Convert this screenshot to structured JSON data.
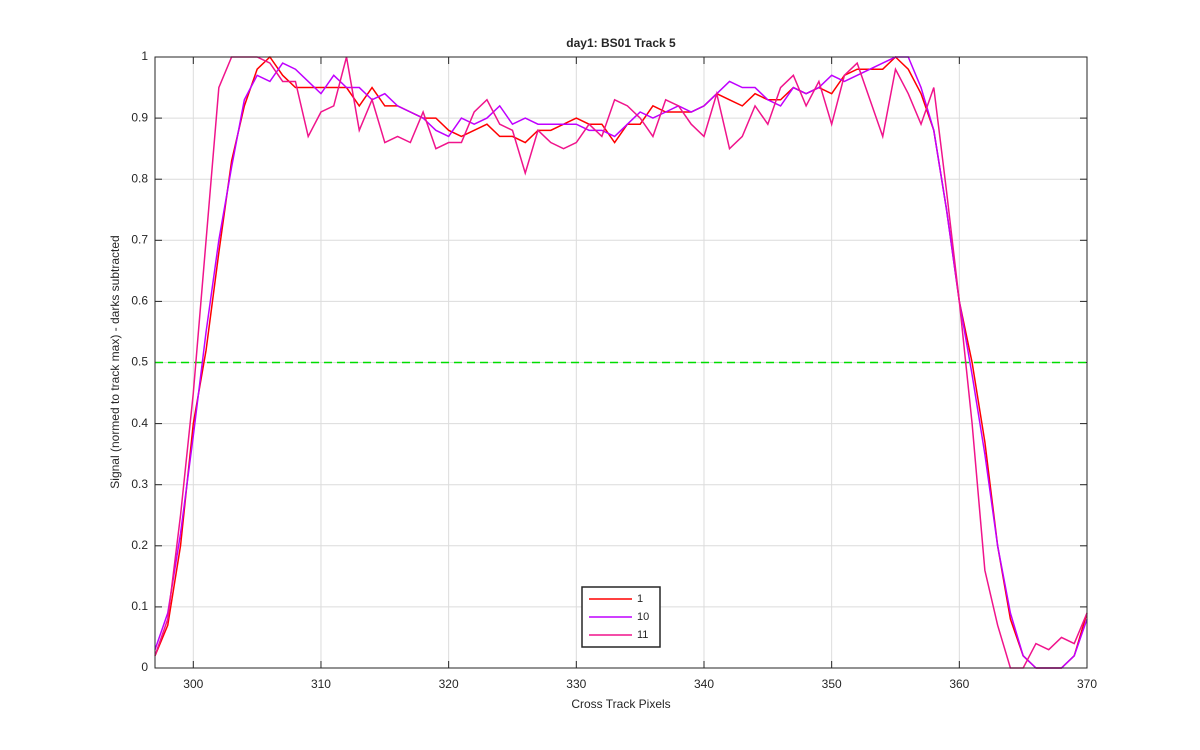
{
  "chart_data": {
    "type": "line",
    "title": "day1: BS01  Track 5",
    "x_label": "Cross Track Pixels",
    "y_label": "Signal (normed to track max) - darks subtracted",
    "x": [
      297,
      298,
      299,
      300,
      301,
      302,
      303,
      304,
      305,
      306,
      307,
      308,
      309,
      310,
      311,
      312,
      313,
      314,
      315,
      316,
      317,
      318,
      319,
      320,
      321,
      322,
      323,
      324,
      325,
      326,
      327,
      328,
      329,
      330,
      331,
      332,
      333,
      334,
      335,
      336,
      337,
      338,
      339,
      340,
      341,
      342,
      343,
      344,
      345,
      346,
      347,
      348,
      349,
      350,
      351,
      352,
      353,
      354,
      355,
      356,
      357,
      358,
      359,
      360,
      361,
      362,
      363,
      364,
      365,
      366,
      367,
      368,
      369,
      370
    ],
    "series": [
      {
        "name": "1",
        "color": "#ff0000",
        "values": [
          0.02,
          0.07,
          0.2,
          0.4,
          0.52,
          0.68,
          0.83,
          0.92,
          0.98,
          1.0,
          0.97,
          0.95,
          0.95,
          0.95,
          0.95,
          0.95,
          0.92,
          0.95,
          0.92,
          0.92,
          0.91,
          0.9,
          0.9,
          0.88,
          0.87,
          0.88,
          0.89,
          0.87,
          0.87,
          0.86,
          0.88,
          0.88,
          0.89,
          0.9,
          0.89,
          0.89,
          0.86,
          0.89,
          0.89,
          0.92,
          0.91,
          0.91,
          0.91,
          0.92,
          0.94,
          0.93,
          0.92,
          0.94,
          0.93,
          0.93,
          0.95,
          0.94,
          0.95,
          0.94,
          0.97,
          0.98,
          0.98,
          0.98,
          1.0,
          0.98,
          0.94,
          0.88,
          0.75,
          0.6,
          0.5,
          0.37,
          0.2,
          0.08,
          0.02,
          0.0,
          0.0,
          0.0,
          0.02,
          0.09
        ]
      },
      {
        "name": "10",
        "color": "#bf00ff",
        "values": [
          0.03,
          0.09,
          0.22,
          0.38,
          0.55,
          0.7,
          0.82,
          0.93,
          0.97,
          0.96,
          0.99,
          0.98,
          0.96,
          0.94,
          0.97,
          0.95,
          0.95,
          0.93,
          0.94,
          0.92,
          0.91,
          0.9,
          0.88,
          0.87,
          0.9,
          0.89,
          0.9,
          0.92,
          0.89,
          0.9,
          0.89,
          0.89,
          0.89,
          0.89,
          0.88,
          0.88,
          0.87,
          0.89,
          0.91,
          0.9,
          0.91,
          0.92,
          0.91,
          0.92,
          0.94,
          0.96,
          0.95,
          0.95,
          0.93,
          0.92,
          0.95,
          0.94,
          0.95,
          0.97,
          0.96,
          0.97,
          0.98,
          0.99,
          1.0,
          1.0,
          0.95,
          0.88,
          0.75,
          0.6,
          0.48,
          0.35,
          0.2,
          0.09,
          0.02,
          0.0,
          0.0,
          0.0,
          0.02,
          0.08
        ]
      },
      {
        "name": "11",
        "color": "#f0148c",
        "values": [
          0.02,
          0.08,
          0.25,
          0.45,
          0.7,
          0.95,
          1.0,
          1.0,
          1.0,
          0.99,
          0.96,
          0.96,
          0.87,
          0.91,
          0.92,
          1.0,
          0.88,
          0.93,
          0.86,
          0.87,
          0.86,
          0.91,
          0.85,
          0.86,
          0.86,
          0.91,
          0.93,
          0.89,
          0.88,
          0.81,
          0.88,
          0.86,
          0.85,
          0.86,
          0.89,
          0.87,
          0.93,
          0.92,
          0.9,
          0.87,
          0.93,
          0.92,
          0.89,
          0.87,
          0.94,
          0.85,
          0.87,
          0.92,
          0.89,
          0.95,
          0.97,
          0.92,
          0.96,
          0.89,
          0.97,
          0.99,
          0.93,
          0.87,
          0.98,
          0.94,
          0.89,
          0.95,
          0.78,
          0.6,
          0.4,
          0.16,
          0.07,
          0.0,
          0.0,
          0.04,
          0.03,
          0.05,
          0.04,
          0.09
        ]
      }
    ],
    "reference_line": {
      "value": 0.5,
      "color": "#00dd00",
      "style": "dashed"
    },
    "xlim": [
      297,
      370
    ],
    "xticks": [
      300,
      310,
      320,
      330,
      340,
      350,
      360,
      370
    ],
    "ylim": [
      0,
      1
    ],
    "yticks": [
      0,
      0.1,
      0.2,
      0.3,
      0.4,
      0.5,
      0.6,
      0.7,
      0.8,
      0.9,
      1
    ],
    "grid": true,
    "legend": "south"
  }
}
